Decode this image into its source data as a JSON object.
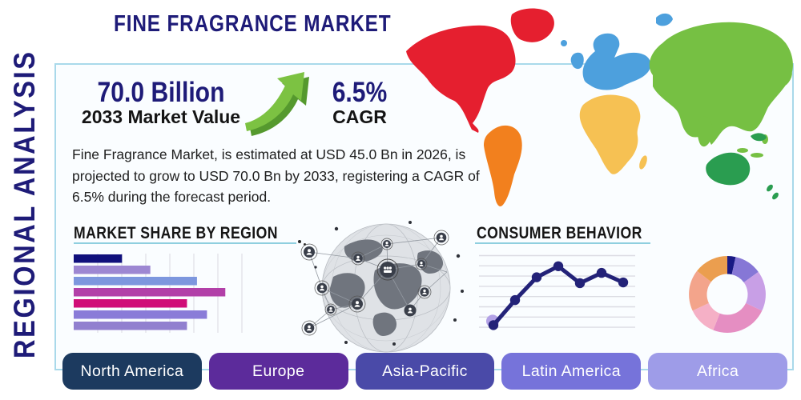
{
  "title": "FINE FRAGRANCE MARKET",
  "side_label": "REGIONAL ANALYSIS",
  "stats": {
    "market_value": "70.0 Billion",
    "market_value_label": "2033 Market Value",
    "cagr_value": "6.5%",
    "cagr_label": "CAGR"
  },
  "description": "Fine Fragrance Market, is estimated at USD 45.0 Bn in 2026, is projected to grow to USD 70.0 Bn by 2033, registering a CAGR of 6.5% during the forecast period.",
  "market_share": {
    "title": "MARKET SHARE BY REGION"
  },
  "consumer_behavior": {
    "title": "CONSUMER BEHAVIOR"
  },
  "region_buttons": [
    {
      "label": "North America",
      "color": "#1c3a5f"
    },
    {
      "label": "Europe",
      "color": "#5c2b9b"
    },
    {
      "label": "Asia-Pacific",
      "color": "#4a4aa8"
    },
    {
      "label": "Latin America",
      "color": "#7673da"
    },
    {
      "label": "Africa",
      "color": "#9e9ce8"
    }
  ],
  "map_regions": [
    {
      "name": "North America",
      "color": "#e51f2f"
    },
    {
      "name": "South America",
      "color": "#f2801e"
    },
    {
      "name": "Europe",
      "color": "#4da0dd"
    },
    {
      "name": "Africa",
      "color": "#f6c153"
    },
    {
      "name": "Asia",
      "color": "#76c043"
    },
    {
      "name": "Australia",
      "color": "#2a9d50"
    }
  ],
  "colors": {
    "navy": "#1e1b78",
    "panel-border": "#a9d9ea",
    "panel-bg": "#fafdff",
    "underline": "#8fcfdf",
    "arrow-green": "#7cc242",
    "arrow-shadow": "#55992e"
  },
  "chart_data": [
    {
      "type": "bar",
      "orientation": "horizontal",
      "title": "MARKET SHARE BY REGION",
      "values": [
        29,
        46,
        74,
        91,
        68,
        80,
        68
      ],
      "xlim": [
        0,
        100
      ],
      "grid": true,
      "colors": [
        "#10107c",
        "#9d87d2",
        "#7d97de",
        "#b240a8",
        "#d00d78",
        "#8a7cd8",
        "#9180cf"
      ],
      "gridline_color": "#d9d9e2"
    },
    {
      "type": "line",
      "title": "CONSUMER BEHAVIOR",
      "x": [
        1,
        2,
        3,
        4,
        5,
        6,
        7
      ],
      "values": [
        5,
        39,
        70,
        85,
        62,
        76,
        63
      ],
      "ylim": [
        0,
        100
      ],
      "grid": true,
      "line_color": "#232278",
      "first_point_halo": "#b3a2e6",
      "gridline_color": "#dcdce3"
    },
    {
      "type": "pie",
      "donut": true,
      "slices": [
        {
          "value": 3.5,
          "color": "#191984"
        },
        {
          "value": 11.5,
          "color": "#8677d6"
        },
        {
          "value": 17,
          "color": "#c89fe6"
        },
        {
          "value": 24,
          "color": "#e58ec2"
        },
        {
          "value": 12,
          "color": "#f5b0c6"
        },
        {
          "value": 17.5,
          "color": "#f3a48b"
        },
        {
          "value": 14.5,
          "color": "#eb9e4f"
        }
      ]
    }
  ]
}
